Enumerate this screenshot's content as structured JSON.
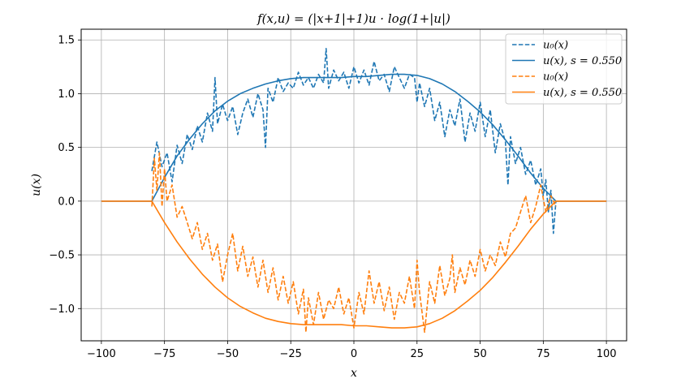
{
  "chart_data": {
    "type": "line",
    "title": "f(x,u) = (|x+1|+1)u · log(1+|u|)",
    "xlabel": "x",
    "ylabel": "u(x)",
    "xlim": [
      -108,
      108
    ],
    "ylim": [
      -1.3,
      1.6
    ],
    "xticks": [
      -100,
      -75,
      -50,
      -25,
      0,
      25,
      50,
      75,
      100
    ],
    "xtick_labels": [
      "−100",
      "−75",
      "−50",
      "−25",
      "0",
      "25",
      "50",
      "75",
      "100"
    ],
    "yticks": [
      -1.0,
      -0.5,
      0.0,
      0.5,
      1.0,
      1.5
    ],
    "ytick_labels": [
      "−1.0",
      "−0.5",
      "0.0",
      "0.5",
      "1.0",
      "1.5"
    ],
    "grid": true,
    "legend_position": "top-right",
    "colors": {
      "blue": "#1f77b4",
      "orange": "#ff7f0e"
    },
    "series": [
      {
        "name": "u0(x)",
        "legend_label": "u₀(x)",
        "color": "#1f77b4",
        "dashed": true,
        "x": [
          -80,
          -78,
          -76,
          -74,
          -72,
          -70,
          -68,
          -66,
          -64,
          -62,
          -60,
          -58,
          -56,
          -55,
          -54,
          -52,
          -50,
          -48,
          -46,
          -44,
          -42,
          -40,
          -38,
          -36,
          -35,
          -34,
          -32,
          -30,
          -28,
          -26,
          -24,
          -22,
          -20,
          -18,
          -16,
          -14,
          -12,
          -11,
          -10,
          -8,
          -6,
          -4,
          -2,
          0,
          2,
          4,
          6,
          8,
          10,
          12,
          14,
          16,
          18,
          20,
          22,
          24,
          25,
          26,
          28,
          30,
          32,
          34,
          36,
          38,
          40,
          42,
          44,
          46,
          48,
          50,
          52,
          54,
          56,
          58,
          60,
          61,
          62,
          64,
          66,
          68,
          70,
          72,
          74,
          75,
          76,
          77,
          78,
          79,
          80
        ],
        "y": [
          0.28,
          0.55,
          0.32,
          0.45,
          0.18,
          0.52,
          0.35,
          0.62,
          0.48,
          0.7,
          0.55,
          0.82,
          0.65,
          1.15,
          0.72,
          0.9,
          0.75,
          0.88,
          0.62,
          0.82,
          0.95,
          0.78,
          1.0,
          0.85,
          0.5,
          1.05,
          0.92,
          1.15,
          1.02,
          1.1,
          1.05,
          1.2,
          1.08,
          1.15,
          1.05,
          1.18,
          1.1,
          1.42,
          1.05,
          1.22,
          1.12,
          1.2,
          1.05,
          1.25,
          1.1,
          1.22,
          1.08,
          1.3,
          1.12,
          1.18,
          1.02,
          1.25,
          1.15,
          1.05,
          1.18,
          1.15,
          0.92,
          1.1,
          0.88,
          1.05,
          0.75,
          0.92,
          0.6,
          0.85,
          0.7,
          0.95,
          0.55,
          0.82,
          0.65,
          0.92,
          0.6,
          0.85,
          0.45,
          0.72,
          0.55,
          0.15,
          0.6,
          0.35,
          0.5,
          0.25,
          0.38,
          0.15,
          0.3,
          0.05,
          0.2,
          -0.1,
          0.1,
          -0.3,
          0.0
        ]
      },
      {
        "name": "u(x), s = 0.550",
        "legend_label": "u(x), s = 0.550",
        "color": "#1f77b4",
        "dashed": false,
        "x": [
          -100,
          -90,
          -80,
          -75,
          -70,
          -65,
          -60,
          -55,
          -50,
          -45,
          -40,
          -35,
          -30,
          -25,
          -20,
          -15,
          -10,
          -5,
          0,
          5,
          10,
          15,
          20,
          25,
          30,
          35,
          40,
          45,
          50,
          55,
          60,
          65,
          70,
          75,
          80,
          90,
          100
        ],
        "y": [
          0,
          0,
          0,
          0.22,
          0.42,
          0.58,
          0.72,
          0.84,
          0.93,
          1.0,
          1.05,
          1.09,
          1.12,
          1.14,
          1.15,
          1.15,
          1.15,
          1.15,
          1.16,
          1.16,
          1.17,
          1.18,
          1.18,
          1.17,
          1.14,
          1.09,
          1.02,
          0.93,
          0.83,
          0.71,
          0.57,
          0.42,
          0.26,
          0.12,
          0,
          0,
          0
        ]
      },
      {
        "name": "u0(x)",
        "legend_label": "u₀(x)",
        "color": "#ff7f0e",
        "dashed": true,
        "x": [
          -80,
          -79,
          -78,
          -77,
          -76,
          -75,
          -74,
          -72,
          -70,
          -68,
          -66,
          -64,
          -62,
          -60,
          -58,
          -56,
          -54,
          -52,
          -50,
          -48,
          -46,
          -44,
          -42,
          -40,
          -38,
          -36,
          -34,
          -32,
          -30,
          -28,
          -26,
          -24,
          -22,
          -20,
          -19,
          -18,
          -16,
          -14,
          -12,
          -10,
          -8,
          -6,
          -4,
          -2,
          0,
          2,
          4,
          6,
          8,
          10,
          12,
          14,
          16,
          18,
          20,
          22,
          24,
          25,
          26,
          28,
          30,
          32,
          34,
          36,
          38,
          39,
          40,
          42,
          44,
          46,
          48,
          50,
          52,
          54,
          56,
          58,
          60,
          62,
          64,
          66,
          68,
          70,
          72,
          74,
          76,
          78,
          80
        ],
        "y": [
          -0.05,
          0.4,
          0.1,
          0.45,
          -0.05,
          0.3,
          0.0,
          0.15,
          -0.15,
          -0.05,
          -0.2,
          -0.35,
          -0.2,
          -0.45,
          -0.3,
          -0.55,
          -0.4,
          -0.75,
          -0.5,
          -0.3,
          -0.65,
          -0.42,
          -0.7,
          -0.52,
          -0.8,
          -0.55,
          -0.85,
          -0.62,
          -0.92,
          -0.7,
          -0.95,
          -0.75,
          -1.05,
          -0.82,
          -1.22,
          -0.9,
          -1.15,
          -0.85,
          -1.1,
          -0.92,
          -1.0,
          -0.8,
          -1.05,
          -0.9,
          -1.18,
          -0.85,
          -1.05,
          -0.65,
          -0.95,
          -0.75,
          -1.02,
          -0.8,
          -1.1,
          -0.85,
          -0.95,
          -0.7,
          -1.0,
          -0.55,
          -0.85,
          -1.22,
          -0.75,
          -0.95,
          -0.6,
          -0.88,
          -0.72,
          -0.5,
          -0.85,
          -0.62,
          -0.78,
          -0.55,
          -0.7,
          -0.45,
          -0.65,
          -0.5,
          -0.6,
          -0.38,
          -0.52,
          -0.3,
          -0.25,
          -0.1,
          0.05,
          -0.2,
          -0.05,
          0.15,
          -0.1,
          0.05,
          -0.05
        ]
      },
      {
        "name": "u(x), s = 0.550",
        "legend_label": "u(x), s = 0.550",
        "color": "#ff7f0e",
        "dashed": false,
        "x": [
          -100,
          -90,
          -80,
          -75,
          -70,
          -65,
          -60,
          -55,
          -50,
          -45,
          -40,
          -35,
          -30,
          -25,
          -20,
          -15,
          -10,
          -5,
          0,
          5,
          10,
          15,
          20,
          25,
          30,
          35,
          40,
          45,
          50,
          55,
          60,
          65,
          70,
          75,
          80,
          90,
          100
        ],
        "y": [
          0,
          0,
          0,
          -0.2,
          -0.38,
          -0.54,
          -0.68,
          -0.8,
          -0.9,
          -0.98,
          -1.04,
          -1.09,
          -1.12,
          -1.14,
          -1.15,
          -1.15,
          -1.15,
          -1.15,
          -1.16,
          -1.16,
          -1.17,
          -1.18,
          -1.18,
          -1.17,
          -1.14,
          -1.09,
          -1.02,
          -0.93,
          -0.83,
          -0.71,
          -0.57,
          -0.42,
          -0.26,
          -0.12,
          0,
          0,
          0
        ]
      }
    ]
  }
}
